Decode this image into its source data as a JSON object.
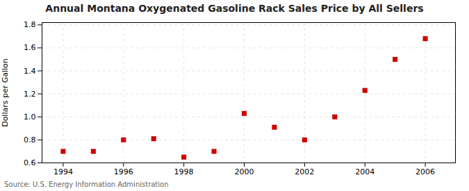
{
  "chart_data": {
    "type": "scatter",
    "title": "Annual Montana Oxygenated Gasoline Rack Sales Price by All Sellers",
    "ylabel": "Dollars per Gallon",
    "source": "Source: U.S. Energy Information Administration",
    "x": [
      1994,
      1995,
      1996,
      1997,
      1998,
      1999,
      2000,
      2001,
      2002,
      2003,
      2004,
      2005,
      2006
    ],
    "values": [
      0.7,
      0.7,
      0.8,
      0.81,
      0.65,
      0.7,
      1.03,
      0.91,
      0.8,
      1.0,
      1.23,
      1.5,
      1.68
    ],
    "color": "#cc0000",
    "marker": "square",
    "xlim": [
      1993.3,
      2007.0
    ],
    "xticks": [
      1994,
      1996,
      1998,
      2000,
      2002,
      2004,
      2006
    ],
    "ylim": [
      0.6,
      1.82
    ],
    "yticks": [
      0.6,
      0.8,
      {
        "value": 1.0,
        "label": "1.0"
      },
      1.2,
      1.4,
      1.6,
      1.8
    ],
    "grid": true
  }
}
